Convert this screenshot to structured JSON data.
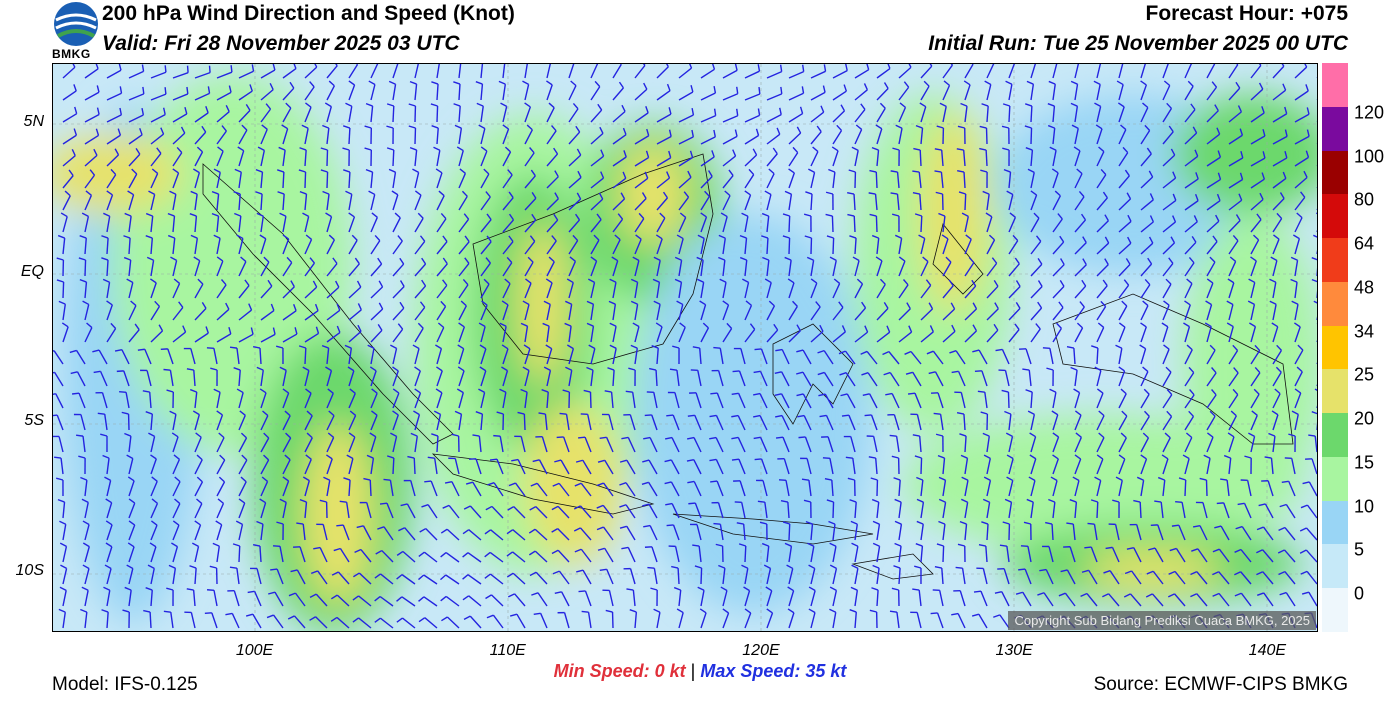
{
  "header": {
    "title": "200 hPa Wind Direction and Speed (Knot)",
    "valid": "Valid: Fri 28 November 2025 03 UTC",
    "forecast_hour": "Forecast Hour: +075",
    "initial_run": "Initial Run: Tue 25 November 2025 00 UTC",
    "logo_text": "BMKG"
  },
  "map": {
    "lat_labels": [
      {
        "text": "5N",
        "value": 5
      },
      {
        "text": "EQ",
        "value": 0
      },
      {
        "text": "5S",
        "value": -5
      },
      {
        "text": "10S",
        "value": -10
      }
    ],
    "lon_labels": [
      {
        "text": "100E",
        "value": 100
      },
      {
        "text": "110E",
        "value": 110
      },
      {
        "text": "120E",
        "value": 120
      },
      {
        "text": "130E",
        "value": 130
      },
      {
        "text": "140E",
        "value": 140
      }
    ],
    "lon_range": [
      92,
      142
    ],
    "lat_range": [
      -12,
      7
    ],
    "copyright": "Copyright Sub Bidang Prediksi Cuaca BMKG, 2025"
  },
  "colorbar": {
    "levels": [
      0,
      5,
      10,
      15,
      20,
      25,
      34,
      48,
      64,
      80,
      100,
      120
    ],
    "labels": [
      "0",
      "5",
      "10",
      "15",
      "20",
      "25",
      "34",
      "48",
      "64",
      "80",
      "100",
      "120"
    ],
    "colors": [
      "#eef7fc",
      "#c6e9f8",
      "#99d5f5",
      "#a8f5a0",
      "#6cd86c",
      "#e6e26a",
      "#ffc400",
      "#ff8a3c",
      "#f03c1a",
      "#d40a0a",
      "#9a0000",
      "#7a0a9e",
      "#ff6ea8"
    ]
  },
  "footer": {
    "min_speed": "Min Speed:   0 kt",
    "separator": "|",
    "max_speed": "Max Speed:  35 kt",
    "model": "Model: IFS-0.125",
    "source": "Source: ECMWF-CIPS BMKG"
  }
}
